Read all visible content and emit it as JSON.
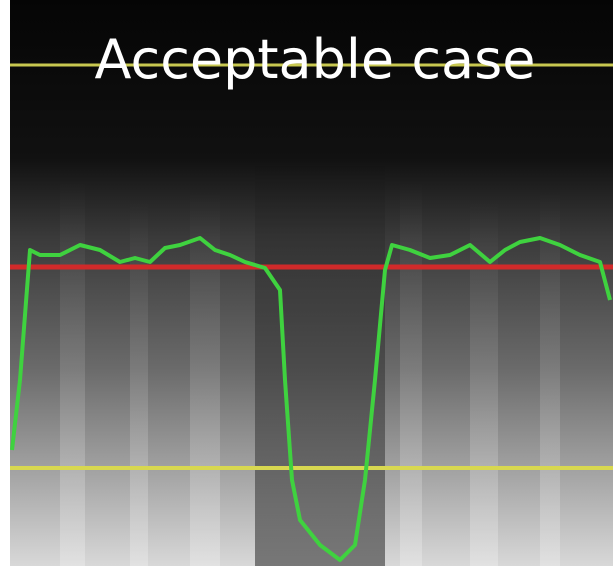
{
  "title": "Acceptable case"
}
